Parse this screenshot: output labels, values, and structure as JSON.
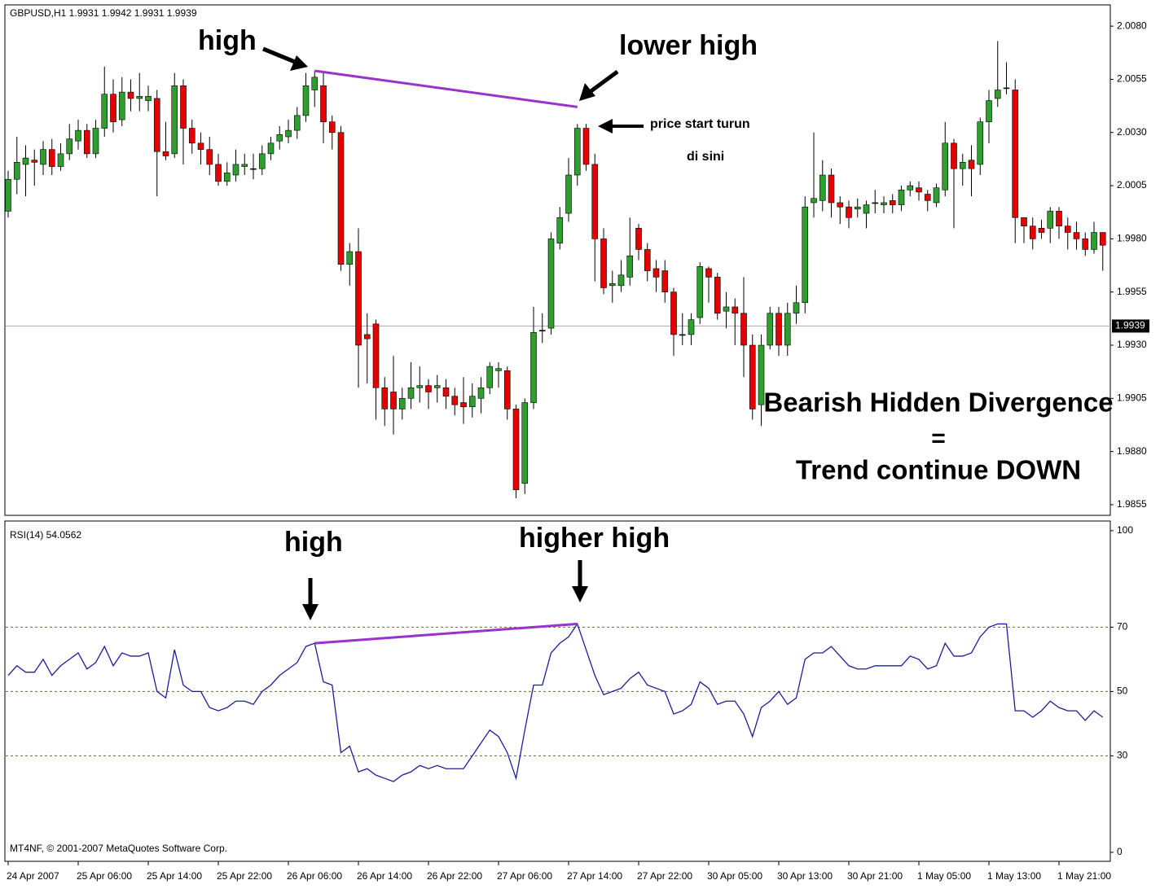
{
  "chart_data": [
    {
      "type": "candlestick",
      "title": "GBPUSD,H1  1.9931 1.9942 1.9931 1.9939",
      "categories": [
        "24 Apr 2007",
        null,
        null,
        null,
        null,
        null,
        null,
        null,
        "25 Apr 06:00",
        null,
        null,
        null,
        null,
        null,
        null,
        null,
        "25 Apr 14:00",
        null,
        null,
        null,
        null,
        null,
        null,
        null,
        "25 Apr 22:00",
        null,
        null,
        null,
        null,
        null,
        null,
        null,
        "26 Apr 06:00",
        null,
        null,
        null,
        null,
        null,
        null,
        null,
        "26 Apr 14:00",
        null,
        null,
        null,
        null,
        null,
        null,
        null,
        "26 Apr 22:00",
        null,
        null,
        null,
        null,
        null,
        null,
        null,
        "27 Apr 06:00",
        null,
        null,
        null,
        null,
        null,
        null,
        null,
        "27 Apr 14:00",
        null,
        null,
        null,
        null,
        null,
        null,
        null,
        "27 Apr 22:00",
        null,
        null,
        null,
        null,
        null,
        null,
        null,
        "30 Apr 05:00",
        null,
        null,
        null,
        null,
        null,
        null,
        null,
        "30 Apr 13:00",
        null,
        null,
        null,
        null,
        null,
        null,
        null,
        "30 Apr 21:00",
        null,
        null,
        null,
        null,
        null,
        null,
        null,
        "1 May 05:00",
        null,
        null,
        null,
        null,
        null,
        null,
        null,
        "1 May 13:00",
        null,
        null,
        null,
        null,
        null,
        null,
        null,
        "1 May 21:00",
        null,
        null,
        null,
        null,
        null
      ],
      "open": [
        1.9993,
        2.0008,
        2.0015,
        2.0017,
        2.0015,
        2.0022,
        2.0014,
        2.002,
        2.0026,
        2.0031,
        2.002,
        2.0032,
        2.0048,
        2.0036,
        2.0049,
        2.0046,
        2.0045,
        2.0046,
        2.0021,
        2.002,
        2.0052,
        2.0032,
        2.0025,
        2.0022,
        2.0015,
        2.0007,
        2.001,
        2.0014,
        2.0013,
        2.0013,
        2.002,
        2.0026,
        2.0028,
        2.0031,
        2.0038,
        2.005,
        2.0052,
        2.0035,
        2.003,
        1.9968,
        1.9974,
        1.9935,
        1.994,
        1.991,
        1.9908,
        1.99,
        1.9905,
        1.991,
        1.9911,
        1.991,
        1.991,
        1.9906,
        1.9903,
        1.9901,
        1.9905,
        1.991,
        1.9918,
        1.9918,
        1.99,
        1.9865,
        1.9903,
        1.9937,
        1.9938,
        1.9978,
        1.9992,
        2.001,
        2.0032,
        2.0015,
        1.998,
        1.9958,
        1.9958,
        1.9962,
        1.9985,
        1.9975,
        1.9966,
        1.9965,
        1.9955,
        1.9935,
        1.9935,
        1.9943,
        1.9966,
        1.9962,
        1.9946,
        1.9948,
        1.9945,
        1.993,
        1.9902,
        1.993,
        1.9945,
        1.993,
        1.9945,
        1.995,
        1.9997,
        1.9998,
        2.001,
        1.9997,
        1.9995,
        1.9994,
        1.9992,
        1.9997,
        1.9996,
        1.9998,
        1.9996,
        2.0003,
        2.0004,
        2.0001,
        1.9997,
        2.0003,
        2.0025,
        2.0013,
        2.0017,
        2.0015,
        2.0035,
        2.0046,
        2.0051,
        2.005,
        1.999,
        1.9986,
        1.9985,
        1.9985,
        1.9993,
        1.9986,
        1.9983,
        1.998,
        1.9975,
        1.9983
      ],
      "high": [
        2.0012,
        2.0028,
        2.0024,
        2.0022,
        2.0026,
        2.0027,
        2.0025,
        2.0034,
        2.0036,
        2.0034,
        2.0036,
        2.0061,
        2.0055,
        2.0056,
        2.0055,
        2.0058,
        2.0052,
        2.005,
        2.0035,
        2.0058,
        2.0055,
        2.0036,
        2.003,
        2.0028,
        2.002,
        2.0016,
        2.0022,
        2.002,
        2.002,
        2.0024,
        2.0028,
        2.0033,
        2.0036,
        2.0042,
        2.0058,
        2.0059,
        2.0058,
        2.0038,
        2.0033,
        1.9978,
        1.9985,
        1.9945,
        1.9942,
        1.9915,
        1.9925,
        1.991,
        1.9922,
        1.992,
        1.9914,
        1.9916,
        1.9914,
        1.991,
        1.9915,
        1.9912,
        1.9915,
        1.9922,
        1.9922,
        1.992,
        1.9902,
        1.9905,
        1.9948,
        1.9945,
        1.9983,
        1.9995,
        2.0018,
        2.0034,
        2.0034,
        2.002,
        1.9985,
        1.9965,
        1.997,
        1.999,
        1.9987,
        1.9978,
        1.997,
        1.997,
        1.9957,
        1.9945,
        1.9945,
        1.9969,
        1.9967,
        1.9964,
        1.9955,
        1.9952,
        1.9962,
        1.9935,
        1.9935,
        1.9948,
        1.9948,
        1.995,
        1.9958,
        2.0,
        2.003,
        2.0017,
        2.0013,
        2.0,
        1.9998,
        1.9999,
        1.9998,
        2.0003,
        2.0,
        2.0001,
        2.0005,
        2.0007,
        2.0007,
        2.0003,
        2.0006,
        2.0035,
        2.0027,
        2.002,
        2.0024,
        2.0037,
        2.005,
        2.0073,
        2.0063,
        2.0055,
        1.999,
        1.999,
        1.9989,
        1.9995,
        1.9995,
        1.999,
        1.9988,
        1.9983,
        1.9988,
        1.9983
      ],
      "low": [
        1.999,
        2.0001,
        2.0,
        2.0005,
        2.001,
        2.001,
        2.0012,
        2.0017,
        2.0022,
        2.0018,
        2.0018,
        2.0028,
        2.003,
        2.0033,
        2.004,
        2.004,
        2.004,
        2.0,
        2.0017,
        2.0018,
        2.0015,
        2.002,
        2.0015,
        2.001,
        2.0005,
        2.0005,
        2.0007,
        2.001,
        2.0008,
        2.001,
        2.0017,
        2.0022,
        2.0025,
        2.0027,
        2.0035,
        2.0042,
        2.0025,
        2.0022,
        1.9965,
        1.9958,
        1.991,
        1.9912,
        1.9895,
        1.9892,
        1.9888,
        1.9895,
        1.99,
        1.9903,
        1.99,
        1.9903,
        1.99,
        1.9897,
        1.9893,
        1.9896,
        1.9898,
        1.9907,
        1.991,
        1.9895,
        1.9858,
        1.986,
        1.99,
        1.9931,
        1.9935,
        1.9975,
        1.9988,
        2.0005,
        2.0012,
        1.996,
        1.9954,
        1.995,
        1.9955,
        1.9958,
        1.997,
        1.996,
        1.9955,
        1.995,
        1.9925,
        1.993,
        1.993,
        1.994,
        1.995,
        1.9942,
        1.9938,
        1.993,
        1.9915,
        1.9895,
        1.9892,
        1.9928,
        1.9925,
        1.9925,
        1.994,
        1.9945,
        1.999,
        1.9993,
        1.999,
        1.9987,
        1.9985,
        1.999,
        1.9985,
        1.9992,
        1.9992,
        1.9992,
        1.9993,
        2.0,
        1.9998,
        1.9993,
        1.9995,
        2.0,
        1.9985,
        2.0005,
        2.0,
        2.001,
        2.0025,
        2.0042,
        2.0048,
        1.9978,
        1.9978,
        1.9975,
        1.998,
        1.9978,
        1.998,
        1.9975,
        1.9975,
        1.9972,
        1.9973,
        1.9965
      ],
      "close": [
        2.0008,
        2.0016,
        2.0018,
        2.0016,
        2.0022,
        2.0014,
        2.002,
        2.0027,
        2.0031,
        2.002,
        2.0032,
        2.0048,
        2.0035,
        2.0049,
        2.0046,
        2.0047,
        2.0047,
        2.0021,
        2.0019,
        2.0052,
        2.0032,
        2.0025,
        2.0022,
        2.0015,
        2.0007,
        2.0011,
        2.0015,
        2.0015,
        2.0013,
        2.002,
        2.0025,
        2.0029,
        2.0031,
        2.0038,
        2.0052,
        2.0056,
        2.0035,
        2.003,
        1.9968,
        1.9974,
        1.993,
        1.9933,
        1.991,
        1.99,
        1.99,
        1.9905,
        1.991,
        1.9911,
        1.9908,
        1.9911,
        1.9906,
        1.9902,
        1.9901,
        1.9906,
        1.991,
        1.992,
        1.9919,
        1.99,
        1.9862,
        1.9903,
        1.9936,
        1.9937,
        1.998,
        1.999,
        2.001,
        2.0032,
        2.0015,
        1.998,
        1.9957,
        1.9959,
        1.9963,
        1.9972,
        1.9975,
        1.9965,
        1.9962,
        1.9955,
        1.9935,
        1.9935,
        1.9942,
        1.9967,
        1.9962,
        1.9945,
        1.9948,
        1.9945,
        1.993,
        1.99,
        1.993,
        1.9945,
        1.993,
        1.9945,
        1.995,
        1.9995,
        1.9999,
        2.001,
        1.9997,
        1.9995,
        1.999,
        1.9995,
        1.9996,
        1.9997,
        1.9997,
        1.9996,
        2.0003,
        2.0005,
        2.0002,
        1.9998,
        2.0004,
        2.0025,
        2.0013,
        2.0016,
        2.0013,
        2.0035,
        2.0045,
        2.005,
        2.0051,
        1.999,
        1.9986,
        1.998,
        1.9983,
        1.9993,
        1.9986,
        1.9983,
        1.998,
        1.9975,
        1.9983,
        1.9977
      ],
      "up_color": "#2e9e2e",
      "down_color": "#e60000",
      "ylim": [
        1.985,
        2.009
      ],
      "yticks": [
        {
          "value": 2.008,
          "label": "2.0080"
        },
        2.0055,
        {
          "value": 2.003,
          "label": "2.0030"
        },
        2.0005,
        {
          "value": 1.998,
          "label": "1.9980"
        },
        1.9955,
        {
          "value": 1.993,
          "label": "1.9930"
        },
        1.9905,
        {
          "value": 1.988,
          "label": "1.9880"
        },
        1.9855
      ],
      "last_price": 1.9939,
      "trendlines": [
        {
          "color": "#9933cc",
          "x": [
            35,
            65
          ],
          "values": [
            2.0059,
            2.0042
          ]
        }
      ],
      "annotations": [
        "high",
        "lower high",
        "price start turun",
        "di sini",
        "Bearish Hidden Divergence",
        "=",
        "Trend continue DOWN"
      ]
    },
    {
      "type": "line",
      "title": "RSI(14) 54.0562",
      "footer": "MT4NF, © 2001-2007 MetaQuotes Software Corp.",
      "series": [
        {
          "name": "RSI(14)",
          "color": "#1c1c9c",
          "values": [
            55,
            58,
            56,
            56,
            60,
            55,
            58,
            60,
            62,
            57,
            59,
            64,
            58,
            62,
            61,
            61,
            62,
            50,
            48,
            63,
            52,
            50,
            50,
            45,
            44,
            45,
            47,
            47,
            46,
            50,
            52,
            55,
            57,
            59,
            64,
            65,
            53,
            52,
            31,
            33,
            25,
            26,
            24,
            23,
            22,
            24,
            25,
            27,
            26,
            27,
            26,
            26,
            26,
            30,
            34,
            38,
            36,
            31,
            23,
            38,
            52,
            52,
            62,
            65,
            67,
            71,
            63,
            55,
            49,
            50,
            51,
            54,
            56,
            52,
            51,
            50,
            43,
            44,
            46,
            53,
            51,
            46,
            47,
            47,
            43,
            36,
            45,
            47,
            50,
            46,
            48,
            60,
            62,
            62,
            64,
            61,
            58,
            57,
            57,
            58,
            58,
            58,
            58,
            61,
            60,
            57,
            58,
            65,
            61,
            61,
            62,
            67,
            70,
            71,
            71,
            44,
            44,
            42,
            44,
            47,
            45,
            44,
            44,
            41,
            44,
            42
          ]
        }
      ],
      "ylim": [
        -2.8,
        103
      ],
      "yticks": [
        0,
        30,
        50,
        70,
        100
      ],
      "levels": [
        30,
        50,
        70
      ],
      "trendlines": [
        {
          "color": "#9933cc",
          "x": [
            35,
            65
          ],
          "values": [
            65,
            71
          ]
        }
      ],
      "annotations": [
        "high",
        "higher high"
      ]
    }
  ]
}
